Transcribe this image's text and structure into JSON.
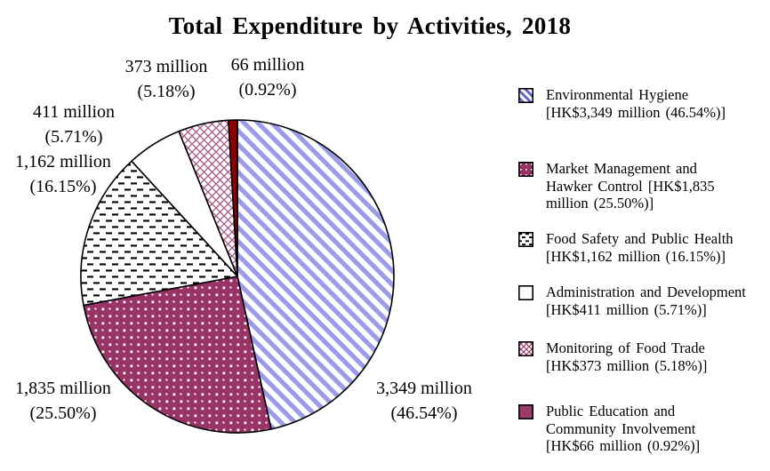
{
  "title": "Total Expenditure by Activities, 2018",
  "callouts": [
    {
      "lines": [
        "373 million",
        "(5.18%)"
      ]
    },
    {
      "lines": [
        "66 million",
        "(0.92%)"
      ]
    },
    {
      "lines": [
        "411 million",
        "(5.71%)"
      ]
    },
    {
      "lines": [
        "1,162 million",
        "(16.15%)"
      ]
    },
    {
      "lines": [
        "1,835 million",
        "(25.50%)"
      ]
    },
    {
      "lines": [
        "3,349 million",
        "(46.54%)"
      ]
    }
  ],
  "legend": {
    "items": [
      {
        "lines": [
          "Environmental Hygiene",
          "[HK$3,349 million (46.54%)]",
          ""
        ],
        "swatch": "diagonal-stripes"
      },
      {
        "lines": [
          "Market Management and",
          "Hawker Control [HK$1,835",
          "million (25.50%)]"
        ],
        "swatch": "dots"
      },
      {
        "lines": [
          "Food Safety and Public Health",
          "[HK$1,162 million (16.15%)]",
          ""
        ],
        "swatch": "horizontal-dashes"
      },
      {
        "lines": [
          "Administration and Development",
          "[HK$411 million (5.71%)]",
          ""
        ],
        "swatch": "plain-white"
      },
      {
        "lines": [
          "Monitoring of Food Trade",
          "[HK$373 million (5.18%)]",
          ""
        ],
        "swatch": "diagonal-crosshatch"
      },
      {
        "lines": [
          "Public Education and",
          "Community Involvement",
          "[HK$66 million (0.92%)]"
        ],
        "swatch": "solid",
        "swatch_color": "#9c3a69"
      }
    ]
  },
  "chart_data": {
    "type": "pie",
    "title": "Total Expenditure by Activities, 2018",
    "unit": "HK$ million",
    "start_angle_deg": 0,
    "direction": "clockwise",
    "legend_position": "right",
    "slices": [
      {
        "label": "Environmental Hygiene",
        "value": 3349,
        "pct": 46.54,
        "pattern": "diagonal-stripes",
        "colors": {
          "fg": "#9b9be8",
          "bg": "#ffffff"
        }
      },
      {
        "label": "Market Management and Hawker Control",
        "value": 1835,
        "pct": 25.5,
        "pattern": "dots",
        "colors": {
          "fg": "#ffffff",
          "bg": "#993366"
        }
      },
      {
        "label": "Food Safety and Public Health",
        "value": 1162,
        "pct": 16.15,
        "pattern": "horizontal-dashes",
        "colors": {
          "fg": "#000000",
          "bg": "#ffffff"
        }
      },
      {
        "label": "Administration and Development",
        "value": 411,
        "pct": 5.71,
        "pattern": "solid",
        "colors": {
          "bg": "#ffffff"
        }
      },
      {
        "label": "Monitoring of Food Trade",
        "value": 373,
        "pct": 5.18,
        "pattern": "diagonal-crosshatch",
        "colors": {
          "fg": "#993366",
          "bg": "#ffffff"
        }
      },
      {
        "label": "Public Education and Community Involvement",
        "value": 66,
        "pct": 0.92,
        "pattern": "solid",
        "colors": {
          "bg": "#8b0000"
        }
      }
    ]
  }
}
